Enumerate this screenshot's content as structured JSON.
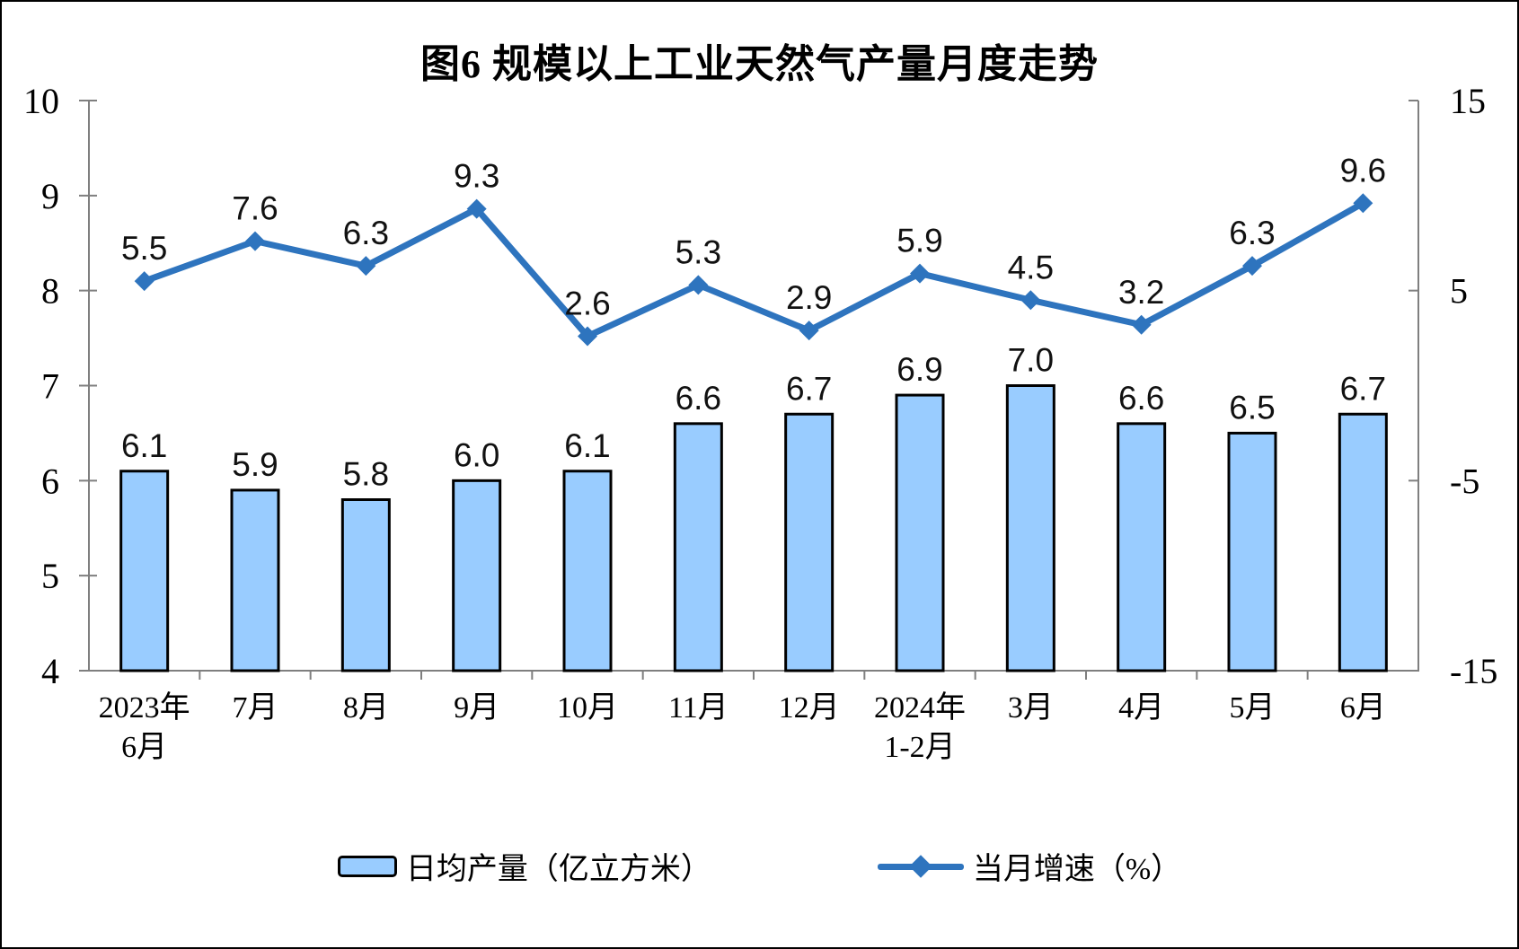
{
  "title": "图6 规模以上工业天然气产量月度走势",
  "chart_data": {
    "type": "bar+line",
    "title": "图6 规模以上工业天然气产量月度走势",
    "categories": [
      "2023年\n6月",
      "7月",
      "8月",
      "9月",
      "10月",
      "11月",
      "12月",
      "2024年\n1-2月",
      "3月",
      "4月",
      "5月",
      "6月"
    ],
    "series": [
      {
        "name": "日均产量（亿立方米）",
        "type": "bar",
        "axis": "left",
        "values": [
          6.1,
          5.9,
          5.8,
          6.0,
          6.1,
          6.6,
          6.7,
          6.9,
          7.0,
          6.6,
          6.5,
          6.7
        ]
      },
      {
        "name": "当月增速（%）",
        "type": "line",
        "axis": "right",
        "values": [
          5.5,
          7.6,
          6.3,
          9.3,
          2.6,
          5.3,
          2.9,
          5.9,
          4.5,
          3.2,
          6.3,
          9.6
        ]
      }
    ],
    "left_axis": {
      "min": 4,
      "max": 10,
      "ticks": [
        10,
        9,
        8,
        7,
        6,
        5,
        4
      ]
    },
    "right_axis": {
      "min": -15,
      "max": 15,
      "ticks": [
        15,
        5,
        -5,
        -15
      ]
    },
    "grid": false,
    "legend_position": "bottom",
    "colors": {
      "bar_fill": "#99CCFF",
      "bar_stroke": "#000000",
      "line": "#2E74BE",
      "axis": "#7F7F7F",
      "text": "#000000"
    }
  }
}
